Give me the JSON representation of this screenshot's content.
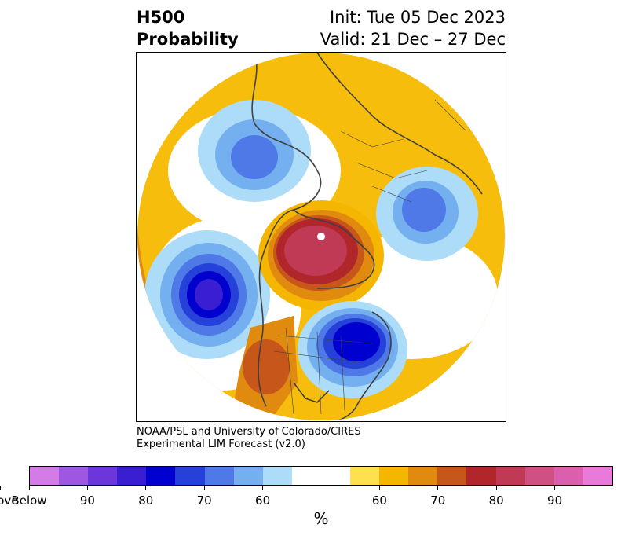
{
  "header": {
    "title_line1": "H500",
    "title_line2": "Probability",
    "init_label": "Init: Tue 05 Dec 2023",
    "valid_label": "Valid: 21 Dec – 27 Dec"
  },
  "credit": {
    "line1": "NOAA/PSL and University of Colorado/CIRES",
    "line2": "Experimental LIM Forecast (v2.0)"
  },
  "colorbar": {
    "unit": "%",
    "colors": [
      "#d57be8",
      "#9e57e0",
      "#6b37dc",
      "#3a1fd2",
      "#0000cf",
      "#2541d9",
      "#4e79e6",
      "#74aff0",
      "#addcf8",
      "#ffffff",
      "#ffe14f",
      "#f4b600",
      "#e08a10",
      "#c7561b",
      "#b1262a",
      "#c03a55",
      "#cf5083",
      "#db5fac",
      "#e97ad9"
    ],
    "widths": [
      1,
      1,
      1,
      1,
      1,
      1,
      1,
      1,
      1,
      2,
      1,
      1,
      1,
      1,
      1,
      1,
      1,
      1,
      1
    ],
    "tick_labels": [
      "Below",
      "90",
      "80",
      "70",
      "60",
      "60",
      "70",
      "80",
      "90",
      "Above"
    ]
  },
  "map": {
    "colors": {
      "below_90": "#3a1fd2",
      "below_80": "#0000cf",
      "below_70": "#2541d9",
      "below_60": "#4e79e6",
      "below_50": "#74aff0",
      "below_40": "#addcf8",
      "above_40": "#ffe14f",
      "above_50": "#f4b600",
      "above_60": "#e08a10",
      "above_70": "#c7561b",
      "above_80": "#b1262a",
      "above_90": "#c03a55",
      "coast": "#404040"
    }
  }
}
